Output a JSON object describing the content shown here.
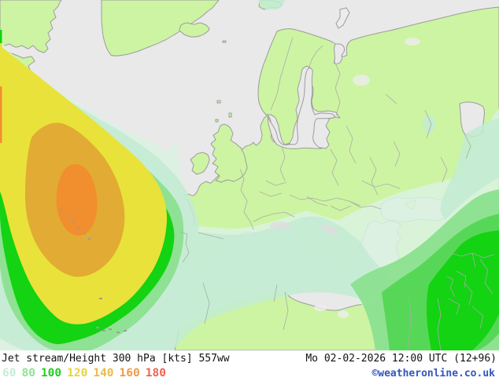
{
  "map": {
    "region": "Europe and North Atlantic",
    "sea_color": "#e9e9e9",
    "land_color": "#cdf4a2",
    "coast_color": "#9c9c9c",
    "border_color": "#ababab",
    "shading_levels": [
      {
        "value": 40,
        "color": "#daf2e2"
      },
      {
        "value": 60,
        "color": "#c2ebd4"
      },
      {
        "value": 80,
        "color": "#8ce08f"
      },
      {
        "value": 90,
        "color": "#57d757"
      },
      {
        "value": 100,
        "color": "#13d313"
      },
      {
        "value": 120,
        "color": "#e9e23a"
      },
      {
        "value": 140,
        "color": "#e2ab33"
      },
      {
        "value": 160,
        "color": "#f18e2e"
      }
    ]
  },
  "caption": {
    "parameter": "Jet stream/Height 300 hPa [kts] 557ww",
    "valid_time": "Mo 02-02-2026 12:00 UTC (12+96)",
    "credit": "©weatheronline.co.uk",
    "legend_values": [
      "60",
      "80",
      "100",
      "120",
      "140",
      "160",
      "180"
    ],
    "legend_colors": [
      "#c6ecd6",
      "#8fe394",
      "#1fce1f",
      "#e7d43c",
      "#e9bc4a",
      "#eb9c49",
      "#ef6450"
    ]
  }
}
